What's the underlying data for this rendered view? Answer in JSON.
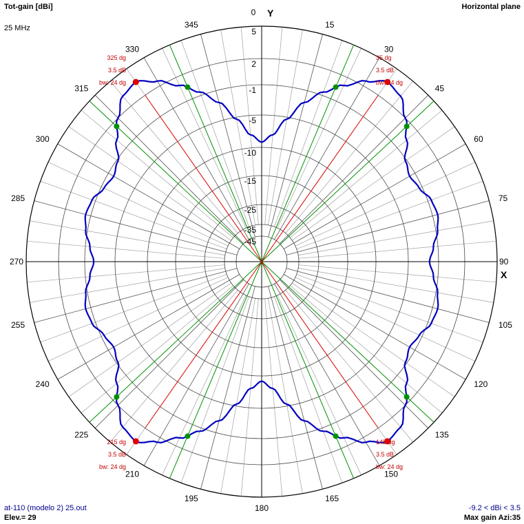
{
  "header": {
    "quantity_label": "Tot-gain [dBi]",
    "plane_label": "Horizontal plane",
    "frequency_label": "25 MHz"
  },
  "footer": {
    "file_label": "at-110 (modelo 2) 25.out",
    "elevation_label": "Elev.= 29",
    "range_label": "-9.2 < dBi < 3.5",
    "max_gain_label": "Max gain Azi:35"
  },
  "colors": {
    "pattern": "#0000c0",
    "max_line": "#e00000",
    "bw_line": "#009000",
    "grid_major": "#000000",
    "grid_minor": "#a0a0a0"
  },
  "chart_data": {
    "type": "polar",
    "title": "Tot-gain [dBi]",
    "subtitle": "Horizontal plane",
    "axis_labels": {
      "y": "Y",
      "x": "X"
    },
    "angle_ticks": [
      "0",
      "15",
      "30",
      "45",
      "60",
      "75",
      "90",
      "105",
      "120",
      "135",
      "150",
      "165",
      "180",
      "195",
      "210",
      "225",
      "240",
      "255",
      "270",
      "285",
      "300",
      "315",
      "330",
      "345"
    ],
    "radial_ticks": [
      "5",
      "2",
      "-1",
      "-5",
      "-10",
      "-15",
      "-25",
      "-35",
      "-45"
    ],
    "radial_tick_values": [
      5,
      2,
      -1,
      -5,
      -10,
      -15,
      -25,
      -35,
      -45
    ],
    "grid": true,
    "series": [
      {
        "azimuth_deg": [
          0,
          5,
          10,
          15,
          20,
          25,
          30,
          35,
          40,
          45,
          50,
          55,
          60,
          65,
          70,
          75,
          80,
          85,
          90
        ],
        "gain_dbi": [
          -9.2,
          -8.0,
          -5.3,
          -2.6,
          -0.6,
          1.0,
          2.5,
          3.5,
          3.2,
          2.0,
          0.4,
          -1.2,
          -1.8,
          -1.4,
          -0.6,
          -0.4,
          -0.8,
          -1.6,
          -2.2
        ],
        "symmetry": "mirrored about X and Y axes"
      }
    ],
    "markers": [
      {
        "azimuth_deg": 35,
        "gain": "3.5 dB",
        "label": "35 dg",
        "beamwidth": "bw: 24 dg"
      },
      {
        "azimuth_deg": 145,
        "gain": "3.5 dB",
        "label": "145 dg",
        "beamwidth": "bw: 24 dg"
      },
      {
        "azimuth_deg": 215,
        "gain": "3.5 dB",
        "label": "215 dg",
        "beamwidth": "bw: 24 dg"
      },
      {
        "azimuth_deg": 325,
        "gain": "3.5 dB",
        "label": "325 dg",
        "beamwidth": "bw: 24 dg"
      }
    ],
    "beamwidth_points_deg": [
      23,
      47,
      133,
      157,
      203,
      227,
      313,
      337
    ]
  }
}
